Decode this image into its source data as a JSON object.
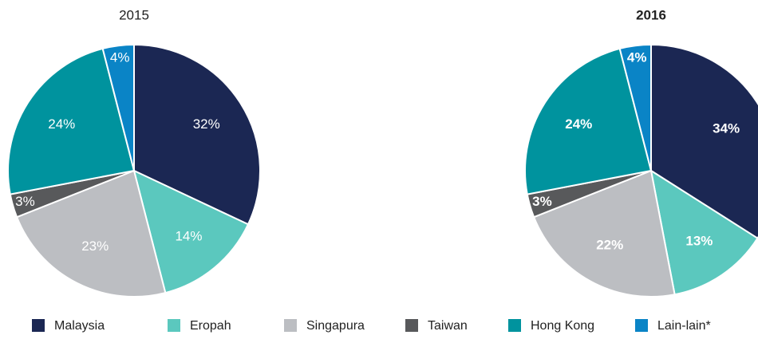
{
  "chart_data": [
    {
      "type": "pie",
      "title": "2015",
      "categories": [
        "Malaysia",
        "Eropah",
        "Singapura",
        "Taiwan",
        "Hong Kong",
        "Lain-lain*"
      ],
      "values": [
        32,
        14,
        23,
        3,
        24,
        4
      ],
      "value_labels": [
        "32%",
        "14%",
        "23%",
        "3%",
        "24%",
        "4%"
      ],
      "colors": [
        "#1b2753",
        "#5bc8be",
        "#bcbec2",
        "#58595b",
        "#00939e",
        "#0a84c6"
      ],
      "legend": "bottom"
    },
    {
      "type": "pie",
      "title": "2016",
      "categories": [
        "Malaysia",
        "Eropah",
        "Singapura",
        "Taiwan",
        "Hong Kong",
        "Lain-lain*"
      ],
      "values": [
        34,
        13,
        22,
        3,
        24,
        4
      ],
      "value_labels": [
        "34%",
        "13%",
        "22%",
        "3%",
        "24%",
        "4%"
      ],
      "colors": [
        "#1b2753",
        "#5bc8be",
        "#bcbec2",
        "#58595b",
        "#00939e",
        "#0a84c6"
      ]
    }
  ]
}
